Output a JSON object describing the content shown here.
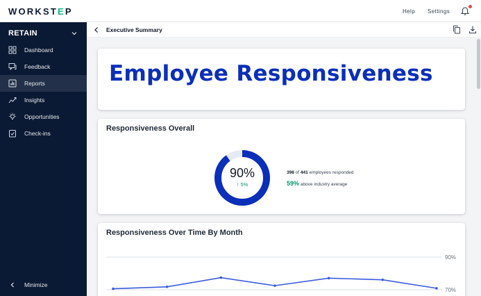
{
  "app": {
    "logo_prefix": "WORKST",
    "logo_o": "E",
    "logo_suffix": "P",
    "help": "Help",
    "settings": "Settings",
    "notification_icon": "bell-icon"
  },
  "sidebar": {
    "product": "RETAIN",
    "items": [
      {
        "label": "Dashboard",
        "icon": "dashboard-icon",
        "active": false
      },
      {
        "label": "Feedback",
        "icon": "feedback-icon",
        "active": false
      },
      {
        "label": "Reports",
        "icon": "reports-icon",
        "active": true
      },
      {
        "label": "Insights",
        "icon": "insights-icon",
        "active": false
      },
      {
        "label": "Opportunities",
        "icon": "lightbulb-icon",
        "active": false
      },
      {
        "label": "Check-ins",
        "icon": "checkin-icon",
        "active": false
      }
    ],
    "minimize": "Minimize"
  },
  "subheader": {
    "title": "Executive Summary"
  },
  "hero": {
    "title": "Employee Responsiveness"
  },
  "overall": {
    "title": "Responsiveness Overall",
    "value": "90%",
    "value_fraction": 0.9,
    "delta": "5%",
    "responded_count": "398",
    "of_text": "of",
    "total": "441",
    "responded_text": "employees responded",
    "industry_pct": "59%",
    "industry_text": "above industry average"
  },
  "over_time": {
    "title": "Responsiveness Over Time By Month"
  },
  "chart_data": {
    "type": "line",
    "title": "Responsiveness Over Time By Month",
    "y_tick_labels": [
      "90%",
      "70%"
    ],
    "ylim": [
      70,
      90
    ],
    "series": [
      {
        "values": [
          70.6,
          71.8,
          77.4,
          72.5,
          77.1,
          76.1,
          70.9
        ]
      }
    ],
    "grid": true,
    "color": "#3b5bdb"
  },
  "colors": {
    "sidebar_bg": "#0b1a34",
    "accent_blue": "#0b2fb8",
    "positive_green": "#059669"
  }
}
